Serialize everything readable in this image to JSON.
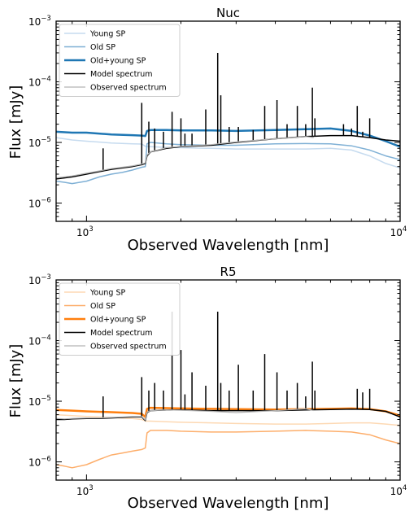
{
  "chart_data": [
    {
      "type": "line",
      "title": "Nuc",
      "xlabel": "Observed Wavelength [nm]",
      "ylabel": "Flux [mJy]",
      "xscale": "log",
      "yscale": "log",
      "xlim": [
        800,
        10000
      ],
      "ylim": [
        5e-07,
        0.001
      ],
      "x_ticks": [
        {
          "base": "10",
          "exp": "3"
        },
        {
          "base": "10",
          "exp": "4"
        }
      ],
      "y_ticks": [
        {
          "base": "10",
          "exp": "−6"
        },
        {
          "base": "10",
          "exp": "−5"
        },
        {
          "base": "10",
          "exp": "−4"
        },
        {
          "base": "10",
          "exp": "−3"
        }
      ],
      "legend_position": "top-left",
      "series": [
        {
          "name": "Young SP",
          "color": "#c6dbef",
          "width": 1.5,
          "x": [
            800,
            900,
            1000,
            1200,
            1400,
            1500,
            1550,
            1600,
            1800,
            2000,
            2500,
            3000,
            4000,
            5000,
            6000,
            7000,
            8000,
            9000,
            10000
          ],
          "y": [
            1.2e-05,
            1.1e-05,
            1.05e-05,
            9.8e-06,
            9.5e-06,
            9.4e-06,
            8.5e-06,
            8.5e-06,
            8.3e-06,
            8.2e-06,
            8e-06,
            7.8e-06,
            7.8e-06,
            7.8e-06,
            8e-06,
            7.5e-06,
            6e-06,
            4.5e-06,
            3.8e-06
          ]
        },
        {
          "name": "Old SP",
          "color": "#7fb0d5",
          "width": 1.5,
          "x": [
            800,
            850,
            900,
            1000,
            1100,
            1200,
            1300,
            1400,
            1500,
            1540,
            1560,
            1600,
            1800,
            2000,
            2500,
            3000,
            4000,
            5000,
            6000,
            7000,
            8000,
            9000,
            10000
          ],
          "y": [
            2.3e-06,
            2.2e-06,
            2.1e-06,
            2.3e-06,
            2.7e-06,
            3e-06,
            3.2e-06,
            3.5e-06,
            3.9e-06,
            4e-06,
            9.5e-06,
            1e-05,
            9.5e-06,
            9.2e-06,
            9e-06,
            9e-06,
            9.5e-06,
            9.6e-06,
            9.5e-06,
            8.8e-06,
            7.5e-06,
            6e-06,
            5.2e-06
          ]
        },
        {
          "name": "Old+young SP",
          "color": "#1f77b4",
          "width": 2.5,
          "x": [
            800,
            900,
            1000,
            1200,
            1400,
            1500,
            1540,
            1560,
            1600,
            1800,
            2000,
            2500,
            3000,
            4000,
            5000,
            6000,
            7000,
            8000,
            9000,
            10000
          ],
          "y": [
            1.5e-05,
            1.45e-05,
            1.45e-05,
            1.35e-05,
            1.32e-05,
            1.3e-05,
            1.28e-05,
            1.55e-05,
            1.6e-05,
            1.6e-05,
            1.58e-05,
            1.58e-05,
            1.55e-05,
            1.6e-05,
            1.65e-05,
            1.7e-05,
            1.55e-05,
            1.3e-05,
            1.05e-05,
            8.5e-06
          ]
        },
        {
          "name": "Model spectrum",
          "color": "#000000",
          "width": 1.5,
          "x": [
            800,
            850,
            900,
            1000,
            1100,
            1200,
            1300,
            1400,
            1500,
            1540,
            1560,
            1600,
            1800,
            2000,
            2500,
            3000,
            4000,
            5000,
            6000,
            7000,
            8000,
            9000,
            10000
          ],
          "y": [
            2.5e-06,
            2.6e-06,
            2.7e-06,
            3e-06,
            3.3e-06,
            3.6e-06,
            3.8e-06,
            4e-06,
            4.3e-06,
            4.5e-06,
            6e-06,
            7e-06,
            8e-06,
            8.5e-06,
            9e-06,
            1e-05,
            1.15e-05,
            1.25e-05,
            1.3e-05,
            1.3e-05,
            1.2e-05,
            1.1e-05,
            1.05e-05
          ],
          "lines": [
            [
              1130,
              8e-06
            ],
            [
              1500,
              4.5e-05
            ],
            [
              1580,
              2.2e-05
            ],
            [
              1650,
              1.7e-05
            ],
            [
              1760,
              1.5e-05
            ],
            [
              1875,
              3.2e-05
            ],
            [
              2000,
              2.5e-05
            ],
            [
              2060,
              1.4e-05
            ],
            [
              2170,
              1.4e-05
            ],
            [
              2400,
              3.5e-05
            ],
            [
              2620,
              0.0003
            ],
            [
              2680,
              6e-05
            ],
            [
              2850,
              1.8e-05
            ],
            [
              3050,
              1.8e-05
            ],
            [
              3400,
              1.6e-05
            ],
            [
              3700,
              4e-05
            ],
            [
              4050,
              5e-05
            ],
            [
              4360,
              2e-05
            ],
            [
              4700,
              4e-05
            ],
            [
              5000,
              2e-05
            ],
            [
              5250,
              8e-05
            ],
            [
              5350,
              2.5e-05
            ],
            [
              6600,
              2e-05
            ],
            [
              7000,
              1.7e-05
            ],
            [
              7300,
              4e-05
            ],
            [
              7600,
              1.5e-05
            ],
            [
              8000,
              2.5e-05
            ]
          ]
        },
        {
          "name": "Observed spectrum",
          "color": "#b3b3b3",
          "width": 1.2,
          "x": [
            800,
            850,
            900,
            1000,
            1100,
            1200,
            1300,
            1400,
            1500,
            1540,
            1560,
            1600,
            1800,
            2000,
            2500,
            3000,
            4000,
            5000,
            5300
          ],
          "y": [
            2.6e-06,
            2.7e-06,
            2.8e-06,
            3.1e-06,
            3.4e-06,
            3.7e-06,
            3.9e-06,
            4.1e-06,
            4.4e-06,
            4.6e-06,
            6.2e-06,
            7e-06,
            8.2e-06,
            8.6e-06,
            9.2e-06,
            1.02e-05,
            1.15e-05,
            1.25e-05,
            1.2e-05
          ]
        }
      ]
    },
    {
      "type": "line",
      "title": "R5",
      "xlabel": "Observed Wavelength [nm]",
      "ylabel": "Flux [mJy]",
      "xscale": "log",
      "yscale": "log",
      "xlim": [
        800,
        10000
      ],
      "ylim": [
        5e-07,
        0.001
      ],
      "x_ticks": [
        {
          "base": "10",
          "exp": "3"
        },
        {
          "base": "10",
          "exp": "4"
        }
      ],
      "y_ticks": [
        {
          "base": "10",
          "exp": "−6"
        },
        {
          "base": "10",
          "exp": "−5"
        },
        {
          "base": "10",
          "exp": "−4"
        },
        {
          "base": "10",
          "exp": "−3"
        }
      ],
      "legend_position": "top-left",
      "series": [
        {
          "name": "Young SP",
          "color": "#fdd9b4",
          "width": 1.5,
          "x": [
            800,
            900,
            1000,
            1200,
            1400,
            1500,
            1550,
            1600,
            1800,
            2000,
            2500,
            3000,
            4000,
            5000,
            6000,
            7000,
            8000,
            9000,
            10000
          ],
          "y": [
            6e-06,
            5.8e-06,
            5.6e-06,
            5.4e-06,
            5.2e-06,
            5e-06,
            4.7e-06,
            4.7e-06,
            4.6e-06,
            4.5e-06,
            4.4e-06,
            4.3e-06,
            4.2e-06,
            4.2e-06,
            4.3e-06,
            4.4e-06,
            4.4e-06,
            4.2e-06,
            4e-06
          ]
        },
        {
          "name": "Old SP",
          "color": "#fdae6b",
          "width": 1.5,
          "x": [
            800,
            850,
            900,
            1000,
            1100,
            1200,
            1300,
            1400,
            1500,
            1540,
            1560,
            1600,
            1800,
            2000,
            2500,
            3000,
            4000,
            5000,
            6000,
            7000,
            8000,
            9000,
            10000
          ],
          "y": [
            9e-07,
            8.5e-07,
            8e-07,
            9e-07,
            1.1e-06,
            1.3e-06,
            1.4e-06,
            1.5e-06,
            1.6e-06,
            1.7e-06,
            3e-06,
            3.3e-06,
            3.3e-06,
            3.2e-06,
            3.1e-06,
            3.1e-06,
            3.2e-06,
            3.3e-06,
            3.2e-06,
            3.1e-06,
            2.8e-06,
            2.3e-06,
            2e-06
          ]
        },
        {
          "name": "Old+young SP",
          "color": "#ff7f0e",
          "width": 2.5,
          "x": [
            800,
            900,
            1000,
            1200,
            1400,
            1500,
            1540,
            1560,
            1600,
            1800,
            2000,
            2500,
            3000,
            4000,
            5000,
            6000,
            7000,
            8000,
            9000,
            10000
          ],
          "y": [
            7.2e-06,
            7e-06,
            6.8e-06,
            6.6e-06,
            6.4e-06,
            6.2e-06,
            5.5e-06,
            7.5e-06,
            7.8e-06,
            7.7e-06,
            7.6e-06,
            7.5e-06,
            7.4e-06,
            7.3e-06,
            7.4e-06,
            7.5e-06,
            7.6e-06,
            7.4e-06,
            6.8e-06,
            5.8e-06
          ]
        },
        {
          "name": "Model spectrum",
          "color": "#000000",
          "width": 1.5,
          "x": [
            800,
            850,
            900,
            1000,
            1100,
            1200,
            1300,
            1400,
            1500,
            1540,
            1560,
            1600,
            1800,
            2000,
            2500,
            3000,
            4000,
            5000,
            6000,
            7000,
            8000,
            9000,
            10000
          ],
          "y": [
            5e-06,
            5e-06,
            5.1e-06,
            5.2e-06,
            5.2e-06,
            5.3e-06,
            5.4e-06,
            5.5e-06,
            5.5e-06,
            4.8e-06,
            6.5e-06,
            7e-06,
            7.2e-06,
            7.2e-06,
            7e-06,
            7e-06,
            7e-06,
            7.2e-06,
            7.3e-06,
            7.4e-06,
            7.3e-06,
            6.8e-06,
            5.5e-06
          ],
          "lines": [
            [
              1130,
              1.2e-05
            ],
            [
              1500,
              2.5e-05
            ],
            [
              1580,
              1.5e-05
            ],
            [
              1650,
              2e-05
            ],
            [
              1760,
              1.5e-05
            ],
            [
              1875,
              0.0003
            ],
            [
              2000,
              7e-05
            ],
            [
              2060,
              1.3e-05
            ],
            [
              2170,
              3e-05
            ],
            [
              2400,
              1.8e-05
            ],
            [
              2620,
              0.0003
            ],
            [
              2680,
              2e-05
            ],
            [
              2850,
              1.5e-05
            ],
            [
              3050,
              4e-05
            ],
            [
              3400,
              1.5e-05
            ],
            [
              3700,
              6e-05
            ],
            [
              4050,
              3e-05
            ],
            [
              4360,
              1.5e-05
            ],
            [
              4700,
              2e-05
            ],
            [
              5000,
              1.2e-05
            ],
            [
              5250,
              4.5e-05
            ],
            [
              5350,
              1.5e-05
            ],
            [
              7300,
              1.6e-05
            ],
            [
              7600,
              1.4e-05
            ],
            [
              8000,
              1.6e-05
            ]
          ]
        },
        {
          "name": "Observed spectrum",
          "color": "#b3b3b3",
          "width": 1.2,
          "x": [
            800,
            850,
            900,
            1000,
            1100,
            1200,
            1300,
            1400,
            1500,
            1540,
            1560,
            1600,
            1800,
            2000,
            2500,
            3000,
            4000,
            5000,
            5300
          ],
          "y": [
            5.2e-06,
            5.1e-06,
            5.2e-06,
            5.3e-06,
            5.3e-06,
            5.4e-06,
            5.5e-06,
            5.6e-06,
            5.6e-06,
            4.9e-06,
            6.6e-06,
            7e-06,
            7.2e-06,
            7.1e-06,
            6.8e-06,
            6.5e-06,
            7e-06,
            7.5e-06,
            7e-06
          ]
        }
      ]
    }
  ]
}
